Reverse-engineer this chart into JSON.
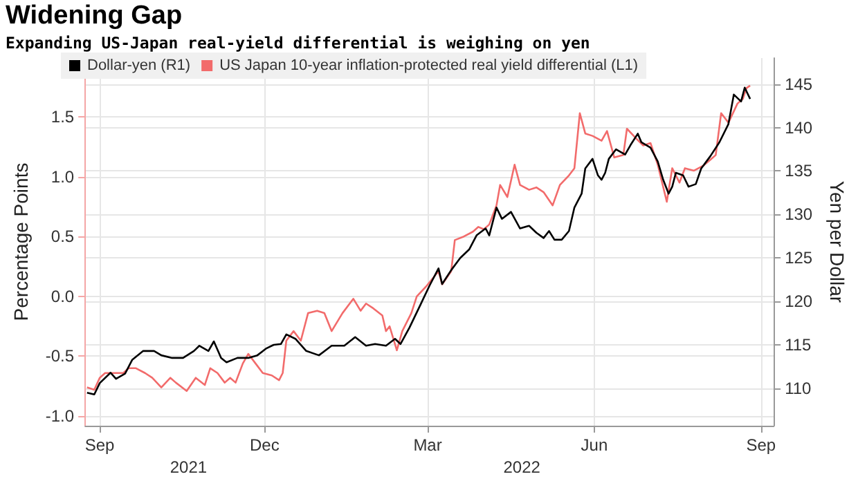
{
  "chart_data": {
    "type": "line",
    "title": "Widening Gap",
    "subtitle": "Expanding US-Japan real-yield differential is weighing on yen",
    "ylabel": "Percentage Points",
    "y2label": "Yen per Dollar",
    "xlim": [
      "2021-08-24",
      "2022-09-08"
    ],
    "xticks": [
      {
        "value": "2021-09-01",
        "label": "Sep"
      },
      {
        "value": "2021-12-01",
        "label": "Dec"
      },
      {
        "value": "2022-03-01",
        "label": "Mar"
      },
      {
        "value": "2022-06-01",
        "label": "Jun"
      },
      {
        "value": "2022-09-01",
        "label": "Sep"
      }
    ],
    "x2lim": [
      "2021-08-24",
      "2022-09-08"
    ],
    "x2ticks": [
      {
        "value": "2021-10-20",
        "label": "2021"
      },
      {
        "value": "2022-04-22",
        "label": "2022"
      }
    ],
    "ylim": [
      -1.08,
      1.99
    ],
    "yticks": [
      {
        "value": -1,
        "label": "-1.0"
      },
      {
        "value": -0.5,
        "label": "-0.5"
      },
      {
        "value": 0,
        "label": "0.0"
      },
      {
        "value": 0.5,
        "label": "0.5"
      },
      {
        "value": 1,
        "label": "1.0"
      },
      {
        "value": 1.5,
        "label": "1.5"
      }
    ],
    "y2lim": [
      105.7,
      148
    ],
    "y2ticks": [
      110,
      115,
      120,
      125,
      130,
      135,
      140,
      145
    ],
    "grid": true,
    "legend": "top left",
    "series": [
      {
        "name": "Dollar-yen (R1)",
        "color": "#000000",
        "axis": "y2",
        "x": [
          "2021-08-25",
          "2021-08-29",
          "2021-09-01",
          "2021-09-07",
          "2021-09-10",
          "2021-09-15",
          "2021-09-19",
          "2021-09-25",
          "2021-10-01",
          "2021-10-05",
          "2021-10-11",
          "2021-10-17",
          "2021-10-23",
          "2021-10-26",
          "2021-10-31",
          "2021-11-03",
          "2021-11-07",
          "2021-11-10",
          "2021-11-16",
          "2021-11-22",
          "2021-11-27",
          "2021-12-02",
          "2021-12-06",
          "2021-12-10",
          "2021-12-13",
          "2021-12-18",
          "2021-12-24",
          "2021-12-31",
          "2022-01-07",
          "2022-01-14",
          "2022-01-20",
          "2022-01-26",
          "2022-01-31",
          "2022-02-06",
          "2022-02-11",
          "2022-02-14",
          "2022-02-19",
          "2022-02-25",
          "2022-03-02",
          "2022-03-07",
          "2022-03-09",
          "2022-03-14",
          "2022-03-19",
          "2022-03-24",
          "2022-03-28",
          "2022-04-02",
          "2022-04-04",
          "2022-04-08",
          "2022-04-11",
          "2022-04-16",
          "2022-04-21",
          "2022-04-26",
          "2022-04-30",
          "2022-05-04",
          "2022-05-07",
          "2022-05-10",
          "2022-05-14",
          "2022-05-18",
          "2022-05-21",
          "2022-05-25",
          "2022-05-27",
          "2022-05-31",
          "2022-06-03",
          "2022-06-05",
          "2022-06-07",
          "2022-06-09",
          "2022-06-13",
          "2022-06-18",
          "2022-06-21",
          "2022-06-25",
          "2022-06-27",
          "2022-07-02",
          "2022-07-06",
          "2022-07-09",
          "2022-07-12",
          "2022-07-14",
          "2022-07-16",
          "2022-07-20",
          "2022-07-23",
          "2022-07-27",
          "2022-07-30",
          "2022-08-04",
          "2022-08-09",
          "2022-08-14",
          "2022-08-17",
          "2022-08-21",
          "2022-08-23",
          "2022-08-26"
        ],
        "values": [
          109.5,
          109.3,
          110.6,
          111.8,
          111.1,
          111.7,
          113.3,
          114.3,
          114.3,
          113.8,
          113.5,
          113.5,
          114.3,
          114.9,
          114.3,
          115.4,
          113.5,
          113.0,
          113.5,
          113.5,
          113.8,
          114.6,
          115.0,
          115.1,
          116.2,
          115.7,
          114.3,
          113.8,
          114.9,
          114.9,
          115.9,
          114.9,
          115.1,
          114.9,
          115.7,
          115.1,
          117.0,
          119.6,
          121.8,
          123.8,
          122.0,
          123.6,
          125.0,
          126.0,
          127.6,
          128.4,
          127.6,
          130.8,
          129.5,
          130.3,
          128.4,
          128.7,
          127.9,
          127.3,
          128.1,
          127.1,
          127.1,
          128.1,
          130.8,
          132.4,
          135.3,
          136.4,
          134.5,
          134.0,
          134.8,
          136.4,
          137.5,
          136.9,
          138.0,
          139.3,
          138.3,
          137.7,
          136.1,
          134.0,
          132.4,
          133.2,
          134.8,
          134.5,
          133.2,
          133.5,
          135.3,
          136.7,
          138.3,
          140.4,
          143.8,
          143.0,
          144.6,
          143.3
        ]
      },
      {
        "name": "US Japan 10-year inflation-protected real yield differential (L1)",
        "color": "#f26b6b",
        "x": [
          "2021-08-25",
          "2021-08-29",
          "2021-09-01",
          "2021-09-04",
          "2021-09-09",
          "2021-09-14",
          "2021-09-17",
          "2021-09-21",
          "2021-09-26",
          "2021-09-30",
          "2021-10-05",
          "2021-10-10",
          "2021-10-13",
          "2021-10-19",
          "2021-10-24",
          "2021-10-29",
          "2021-11-01",
          "2021-11-05",
          "2021-11-09",
          "2021-11-12",
          "2021-11-15",
          "2021-11-19",
          "2021-11-22",
          "2021-11-26",
          "2021-11-30",
          "2021-12-05",
          "2021-12-09",
          "2021-12-11",
          "2021-12-13",
          "2021-12-17",
          "2021-12-21",
          "2021-12-25",
          "2021-12-30",
          "2022-01-03",
          "2022-01-07",
          "2022-01-13",
          "2022-01-19",
          "2022-01-23",
          "2022-01-26",
          "2022-01-30",
          "2022-02-04",
          "2022-02-06",
          "2022-02-08",
          "2022-02-12",
          "2022-02-15",
          "2022-02-20",
          "2022-02-23",
          "2022-02-28",
          "2022-03-07",
          "2022-03-09",
          "2022-03-14",
          "2022-03-16",
          "2022-03-21",
          "2022-03-26",
          "2022-03-29",
          "2022-04-01",
          "2022-04-04",
          "2022-04-08",
          "2022-04-10",
          "2022-04-14",
          "2022-04-18",
          "2022-04-21",
          "2022-04-26",
          "2022-04-30",
          "2022-05-04",
          "2022-05-09",
          "2022-05-13",
          "2022-05-18",
          "2022-05-21",
          "2022-05-24",
          "2022-05-27",
          "2022-05-31",
          "2022-06-05",
          "2022-06-08",
          "2022-06-12",
          "2022-06-17",
          "2022-06-19",
          "2022-06-24",
          "2022-06-28",
          "2022-07-02",
          "2022-07-06",
          "2022-07-11",
          "2022-07-14",
          "2022-07-18",
          "2022-07-21",
          "2022-07-26",
          "2022-07-31",
          "2022-08-04",
          "2022-08-07",
          "2022-08-10",
          "2022-08-14",
          "2022-08-19",
          "2022-08-22",
          "2022-08-24",
          "2022-08-26"
        ],
        "values": [
          -0.76,
          -0.78,
          -0.68,
          -0.64,
          -0.64,
          -0.64,
          -0.6,
          -0.6,
          -0.64,
          -0.68,
          -0.76,
          -0.68,
          -0.72,
          -0.79,
          -0.68,
          -0.74,
          -0.6,
          -0.64,
          -0.72,
          -0.68,
          -0.72,
          -0.56,
          -0.48,
          -0.56,
          -0.64,
          -0.66,
          -0.7,
          -0.64,
          -0.37,
          -0.29,
          -0.37,
          -0.14,
          -0.12,
          -0.14,
          -0.29,
          -0.14,
          -0.02,
          -0.12,
          -0.06,
          -0.1,
          -0.16,
          -0.29,
          -0.25,
          -0.45,
          -0.29,
          -0.14,
          0.0,
          0.08,
          0.21,
          0.1,
          0.21,
          0.47,
          0.5,
          0.54,
          0.58,
          0.56,
          0.6,
          0.76,
          0.93,
          0.83,
          1.1,
          0.93,
          0.89,
          0.91,
          0.87,
          0.76,
          0.93,
          1.01,
          1.07,
          1.53,
          1.36,
          1.34,
          1.3,
          1.38,
          1.16,
          1.18,
          1.4,
          1.32,
          1.26,
          1.28,
          1.1,
          0.79,
          1.07,
          0.95,
          1.07,
          1.05,
          1.09,
          1.14,
          1.18,
          1.53,
          1.45,
          1.61,
          1.65,
          1.74,
          1.76
        ]
      }
    ]
  }
}
